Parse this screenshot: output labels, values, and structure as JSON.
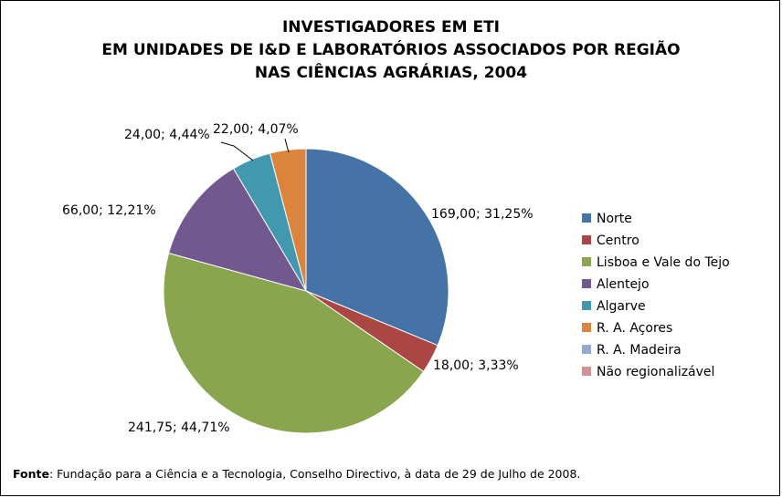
{
  "chart_data": {
    "type": "pie",
    "title_lines": [
      "INVESTIGADORES EM ETI",
      "EM UNIDADES DE I&D E LABORATÓRIOS ASSOCIADOS POR REGIÃO",
      "NAS CIÊNCIAS AGRÁRIAS, 2004"
    ],
    "slices": [
      {
        "name": "Norte",
        "value": 169.0,
        "percent": 31.25,
        "label": "169,00; 31,25%",
        "color": "#4572a7"
      },
      {
        "name": "Centro",
        "value": 18.0,
        "percent": 3.33,
        "label": "18,00; 3,33%",
        "color": "#aa4643"
      },
      {
        "name": "Lisboa e Vale do Tejo",
        "value": 241.75,
        "percent": 44.71,
        "label": "241,75; 44,71%",
        "color": "#89a54e"
      },
      {
        "name": "Alentejo",
        "value": 66.0,
        "percent": 12.21,
        "label": "66,00; 12,21%",
        "color": "#71588f"
      },
      {
        "name": "Algarve",
        "value": 24.0,
        "percent": 4.44,
        "label": "24,00; 4,44%",
        "color": "#4198af"
      },
      {
        "name": "R. A. Açores",
        "value": 22.0,
        "percent": 4.07,
        "label": "22,00; 4,07%",
        "color": "#db843d"
      },
      {
        "name": "R. A. Madeira",
        "value": 0,
        "percent": 0,
        "label": "",
        "color": "#93a9cf"
      },
      {
        "name": "Não regionalizável",
        "value": 0,
        "percent": 0,
        "label": "",
        "color": "#d19392"
      }
    ],
    "legend_position": "right"
  },
  "source": {
    "label": "Fonte",
    "text": ": Fundação para a Ciência e a Tecnologia, Conselho Directivo, à data de 29 de Julho de 2008."
  }
}
